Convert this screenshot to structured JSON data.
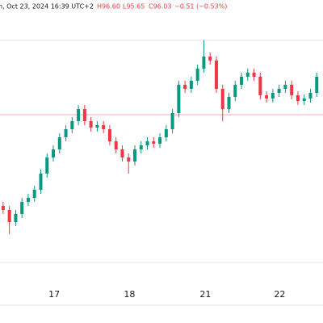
{
  "header": {
    "date": "n, Oct 23, 2024 16:39 UTC+2",
    "high": "H96.60",
    "low": "L95.65",
    "close": "C96.03",
    "change": "−0.51 (−0.53%)"
  },
  "chart_data": {
    "type": "candlestick",
    "x": [
      1,
      3,
      5,
      7,
      9,
      11,
      13,
      15,
      17,
      19,
      21,
      23,
      25,
      27,
      29,
      31,
      33,
      35,
      37,
      39,
      41,
      43,
      45,
      47,
      49,
      51,
      53,
      55,
      57,
      59,
      61,
      63,
      65,
      67,
      69,
      71,
      73,
      75,
      77,
      79,
      81,
      83,
      85,
      87,
      89,
      91,
      93,
      95,
      97,
      99,
      101
    ],
    "open": [
      92.9,
      92.8,
      92.5,
      92.7,
      93.0,
      93.1,
      93.3,
      93.7,
      94.1,
      94.3,
      94.6,
      94.8,
      95.0,
      95.3,
      95.0,
      94.84,
      94.9,
      94.8,
      94.5,
      94.3,
      94.1,
      94.0,
      94.3,
      94.4,
      94.5,
      94.44,
      94.6,
      94.8,
      95.2,
      95.9,
      95.8,
      96.0,
      96.3,
      96.6,
      96.5,
      95.8,
      95.3,
      95.6,
      95.9,
      96.1,
      96.2,
      96.1,
      95.64,
      95.56,
      95.7,
      95.8,
      95.9,
      95.64,
      95.5,
      95.56,
      95.7
    ],
    "high": [
      93.0,
      92.9,
      92.8,
      93.1,
      93.2,
      93.4,
      93.8,
      94.2,
      94.4,
      94.7,
      94.9,
      95.1,
      95.4,
      95.4,
      95.1,
      95.0,
      95.0,
      94.9,
      94.6,
      94.4,
      94.2,
      94.4,
      94.5,
      94.6,
      94.6,
      94.7,
      94.9,
      95.3,
      96.0,
      96.0,
      96.1,
      96.4,
      97.0,
      96.7,
      96.6,
      95.9,
      95.7,
      96.0,
      96.2,
      96.3,
      96.3,
      96.2,
      95.74,
      95.8,
      95.9,
      96.0,
      96.0,
      95.74,
      95.66,
      95.8,
      96.2
    ],
    "low": [
      92.7,
      92.2,
      92.4,
      92.6,
      92.9,
      93.0,
      93.2,
      93.6,
      94.0,
      94.2,
      94.5,
      94.7,
      94.9,
      94.9,
      94.74,
      94.74,
      94.7,
      94.4,
      94.2,
      94.0,
      93.7,
      93.9,
      94.2,
      94.3,
      94.34,
      94.34,
      94.5,
      94.7,
      95.1,
      95.7,
      95.7,
      95.9,
      96.2,
      96.4,
      95.7,
      95.0,
      95.2,
      95.5,
      95.8,
      96.0,
      96.0,
      95.54,
      95.46,
      95.46,
      95.6,
      95.7,
      95.54,
      95.4,
      95.4,
      95.46,
      95.6
    ],
    "close": [
      92.8,
      92.5,
      92.7,
      93.0,
      93.1,
      93.3,
      93.7,
      94.1,
      94.3,
      94.6,
      94.8,
      95.0,
      95.3,
      95.0,
      94.84,
      94.9,
      94.8,
      94.5,
      94.3,
      94.1,
      94.0,
      94.3,
      94.4,
      94.5,
      94.44,
      94.6,
      94.8,
      95.2,
      95.9,
      95.8,
      96.0,
      96.3,
      96.6,
      96.5,
      95.8,
      95.3,
      95.6,
      95.9,
      96.1,
      96.2,
      96.1,
      95.64,
      95.56,
      95.7,
      95.8,
      95.9,
      95.64,
      95.5,
      95.56,
      95.7,
      96.1
    ],
    "up_color": "#089981",
    "down_color": "#f23645",
    "price_line": 95.16,
    "price_line_color": "#f7a5ab",
    "xlim": [
      0,
      103
    ],
    "ylim": [
      90,
      98
    ],
    "xticks": [
      {
        "value": 17.3,
        "label": "17"
      },
      {
        "value": 41.3,
        "label": "18"
      },
      {
        "value": 65.5,
        "label": "21"
      },
      {
        "value": 89.2,
        "label": "22"
      }
    ]
  }
}
